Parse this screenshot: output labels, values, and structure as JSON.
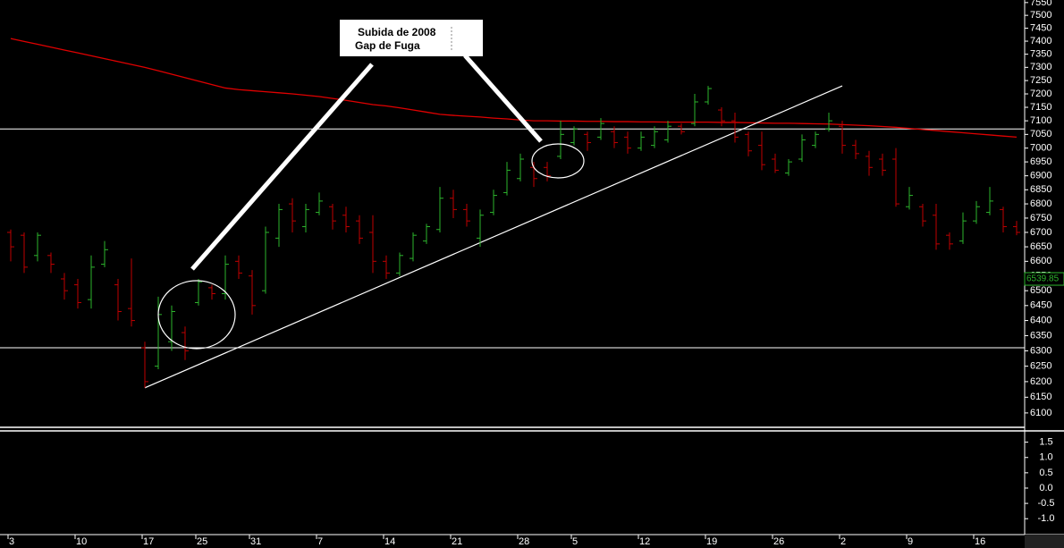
{
  "chart_data": [
    {
      "type": "ohlc",
      "categories": [
        "3",
        null,
        null,
        null,
        null,
        "10",
        null,
        null,
        null,
        null,
        "17",
        null,
        null,
        null,
        "25",
        null,
        null,
        null,
        "31",
        null,
        null,
        null,
        null,
        "7",
        null,
        null,
        null,
        null,
        "14",
        null,
        null,
        null,
        null,
        "21",
        null,
        null,
        null,
        null,
        "28",
        null,
        null,
        null,
        "5",
        null,
        null,
        null,
        null,
        "12",
        null,
        null,
        null,
        null,
        "19",
        null,
        null,
        null,
        null,
        "26",
        null,
        null,
        null,
        null,
        "2",
        null,
        null,
        null,
        null,
        "9",
        null,
        null,
        null,
        null,
        "16",
        null,
        null,
        null
      ],
      "open": [
        6700,
        6690,
        6620,
        6620,
        6540,
        6520,
        6470,
        6590,
        6520,
        6440,
        6310,
        6250,
        6330,
        6360,
        6460,
        6510,
        6490,
        6600,
        6550,
        6500,
        6680,
        6800,
        6720,
        6770,
        6790,
        6760,
        6740,
        6700,
        6600,
        6560,
        6610,
        6670,
        6710,
        6820,
        6780,
        6680,
        6770,
        6840,
        6890,
        6930,
        6930,
        6970,
        7020,
        7050,
        7040,
        7060,
        7040,
        7000,
        7010,
        7030,
        7080,
        7090,
        7170,
        7140,
        7100,
        7050,
        7010,
        6960,
        6910,
        6960,
        7010,
        7070,
        7080,
        7010,
        6970,
        6960,
        6960,
        6790,
        6790,
        6760,
        6690,
        6670,
        6740,
        6770,
        6780,
        6720
      ],
      "high": [
        6710,
        6700,
        6700,
        6630,
        6560,
        6540,
        6620,
        6670,
        6540,
        6610,
        6330,
        6480,
        6450,
        6380,
        6540,
        6520,
        6620,
        6620,
        6570,
        6720,
        6800,
        6820,
        6800,
        6840,
        6800,
        6790,
        6760,
        6760,
        6620,
        6630,
        6700,
        6730,
        6860,
        6850,
        6800,
        6780,
        6850,
        6950,
        6980,
        6950,
        6950,
        7100,
        7080,
        7060,
        7110,
        7080,
        7060,
        7060,
        7080,
        7100,
        7090,
        7200,
        7230,
        7150,
        7130,
        7060,
        7060,
        6980,
        6960,
        7050,
        7060,
        7130,
        7100,
        7030,
        6990,
        6980,
        7000,
        6860,
        6800,
        6800,
        6700,
        6770,
        6810,
        6860,
        6790,
        6740
      ],
      "low": [
        6600,
        6560,
        6600,
        6560,
        6470,
        6440,
        6440,
        6580,
        6400,
        6380,
        6180,
        6240,
        6300,
        6270,
        6450,
        6470,
        6470,
        6540,
        6420,
        6490,
        6650,
        6700,
        6700,
        6760,
        6710,
        6700,
        6660,
        6560,
        6540,
        6550,
        6600,
        6660,
        6700,
        6750,
        6720,
        6650,
        6760,
        6830,
        6880,
        6860,
        6880,
        6960,
        7010,
        6990,
        7030,
        7000,
        6980,
        6990,
        7000,
        7020,
        7050,
        7080,
        7160,
        7080,
        7020,
        6970,
        6920,
        6910,
        6900,
        6950,
        7000,
        7060,
        6980,
        6960,
        6900,
        6900,
        6790,
        6780,
        6720,
        6640,
        6640,
        6660,
        6730,
        6760,
        6700,
        6690
      ],
      "close": [
        6650,
        6580,
        6690,
        6590,
        6500,
        6460,
        6580,
        6640,
        6430,
        6400,
        6200,
        6420,
        6430,
        6300,
        6530,
        6490,
        6590,
        6560,
        6450,
        6700,
        6780,
        6740,
        6780,
        6810,
        6740,
        6720,
        6680,
        6600,
        6560,
        6620,
        6690,
        6720,
        6820,
        6780,
        6740,
        6760,
        6830,
        6920,
        6960,
        6890,
        6900,
        7050,
        7070,
        7020,
        7090,
        7020,
        7000,
        7040,
        7060,
        7080,
        7060,
        7170,
        7220,
        7100,
        7040,
        6990,
        6940,
        6920,
        6950,
        7030,
        7050,
        7100,
        7010,
        6980,
        6930,
        6920,
        6800,
        6830,
        6740,
        6660,
        6660,
        6740,
        6790,
        6810,
        6720,
        6700
      ],
      "up_color": "#2db52d",
      "down_color": "#c00000",
      "moving_average": {
        "color": "#e00000",
        "values": [
          7410,
          7399,
          7388,
          7377,
          7366,
          7355,
          7344,
          7333,
          7322,
          7311,
          7300,
          7287,
          7274,
          7261,
          7248,
          7235,
          7222,
          7216,
          7212,
          7208,
          7204,
          7200,
          7195,
          7190,
          7183,
          7176,
          7168,
          7160,
          7155,
          7148,
          7140,
          7132,
          7124,
          7120,
          7117,
          7114,
          7110,
          7107,
          7103,
          7100,
          7100,
          7099,
          7099,
          7098,
          7098,
          7097,
          7097,
          7096,
          7096,
          7095,
          7095,
          7095,
          7095,
          7094,
          7094,
          7093,
          7092,
          7091,
          7091,
          7090,
          7089,
          7088,
          7086,
          7084,
          7082,
          7079,
          7076,
          7072,
          7068,
          7064,
          7060,
          7056,
          7052,
          7048,
          7044,
          7040
        ]
      },
      "hlines": [
        7070,
        6310
      ],
      "trendline": {
        "x": [
          10,
          62
        ],
        "y": [
          6180,
          7230
        ]
      },
      "last_price": 6539.85,
      "annotation": [
        "Subida de 2008",
        "Gap de Fuga"
      ],
      "ylog": true,
      "ylim": [
        6063,
        7560
      ],
      "yticks": [
        6100,
        6150,
        6200,
        6250,
        6300,
        6350,
        6400,
        6450,
        6500,
        6550,
        6600,
        6650,
        6700,
        6750,
        6800,
        6850,
        6900,
        6950,
        7000,
        7050,
        7100,
        7150,
        7200,
        7250,
        7300,
        7350,
        7400,
        7450,
        7500,
        7550
      ]
    },
    {
      "type": "indicator",
      "ylim": [
        -1.49,
        1.81
      ],
      "yticks": [
        1.5,
        {
          "value": 1,
          "label": "1.0"
        },
        0.5,
        {
          "value": 0,
          "label": "0.0"
        },
        -0.5,
        {
          "value": -1,
          "label": "-1.0"
        }
      ]
    }
  ]
}
